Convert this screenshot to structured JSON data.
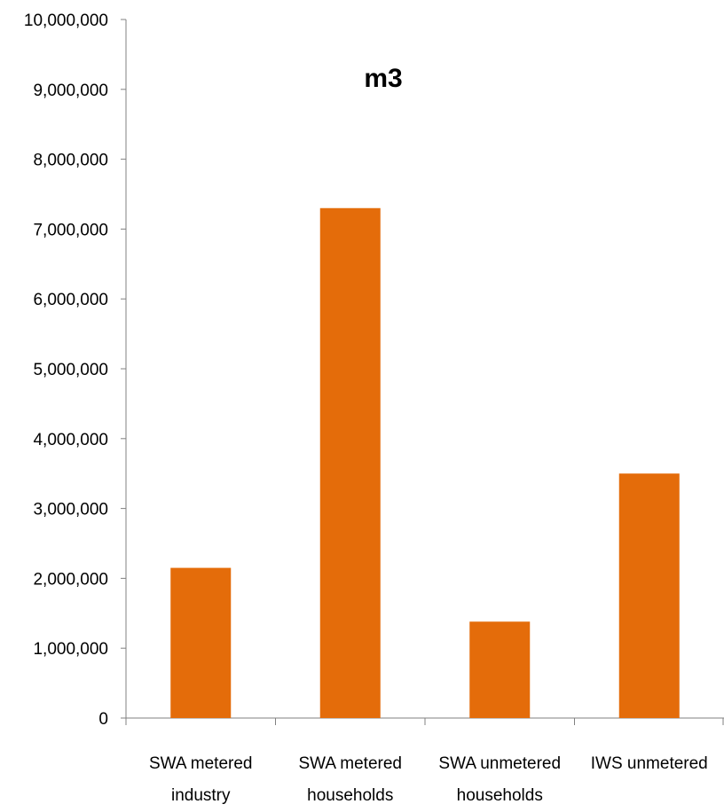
{
  "chart_data": {
    "type": "bar",
    "title": "m3",
    "xlabel": "",
    "ylabel": "",
    "categories": [
      [
        "SWA metered",
        "industry"
      ],
      [
        "SWA metered",
        "households"
      ],
      [
        "SWA unmetered",
        "households"
      ],
      [
        "IWS unmetered",
        ""
      ]
    ],
    "values": [
      2150000,
      7300000,
      1380000,
      3500000
    ],
    "ylim": [
      0,
      10000000
    ],
    "ytick_step": 1000000,
    "yticks": [
      "0",
      "1,000,000",
      "2,000,000",
      "3,000,000",
      "4,000,000",
      "5,000,000",
      "6,000,000",
      "7,000,000",
      "8,000,000",
      "9,000,000",
      "10,000,000"
    ],
    "grid": false,
    "legend": "none",
    "bar_color": "#E46C0A"
  }
}
